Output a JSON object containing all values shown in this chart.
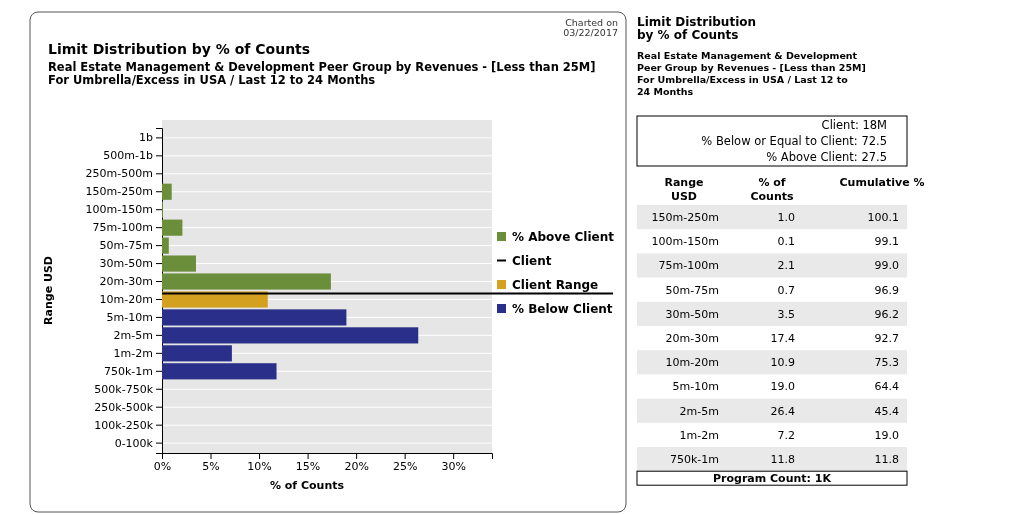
{
  "chart_data": [
    {
      "type": "bar",
      "orientation": "horizontal",
      "title": "Limit Distribution by % of Counts",
      "subtitle": "Real Estate Management & Development Peer Group by Revenues - [Less than 25M]\nFor Umbrella/Excess in USA / Last 12 to 24 Months",
      "annotations": [
        "Charted on\n03/22/2017"
      ],
      "xlabel": "% of Counts",
      "ylabel": "Range USD",
      "categories": [
        "1b",
        "500m-1b",
        "250m-500m",
        "150m-250m",
        "100m-150m",
        "75m-100m",
        "50m-75m",
        "30m-50m",
        "20m-30m",
        "10m-20m",
        "5m-10m",
        "2m-5m",
        "1m-2m",
        "750k-1m",
        "500k-750k",
        "250k-500k",
        "100k-250k",
        "0-100k"
      ],
      "series": [
        {
          "name": "% Above Client",
          "color": "#6b8e3a",
          "values": [
            null,
            null,
            null,
            1.0,
            0.1,
            2.1,
            0.7,
            3.5,
            17.4,
            null,
            null,
            null,
            null,
            null,
            null,
            null,
            null,
            null
          ]
        },
        {
          "name": "Client Range",
          "color": "#d4a020",
          "values": [
            null,
            null,
            null,
            null,
            null,
            null,
            null,
            null,
            null,
            10.9,
            null,
            null,
            null,
            null,
            null,
            null,
            null,
            null
          ]
        },
        {
          "name": "% Below Client",
          "color": "#2a2f8a",
          "values": [
            null,
            null,
            null,
            null,
            null,
            null,
            null,
            null,
            null,
            null,
            19.0,
            26.4,
            7.2,
            11.8,
            null,
            null,
            null,
            null
          ]
        }
      ],
      "ref_lines": [
        {
          "axis": "y",
          "value": "10m-20m",
          "label": "Client",
          "color": "#000000"
        }
      ],
      "xlim": [
        0,
        34
      ],
      "xticks": [
        {
          "value": 0,
          "label": "0%"
        },
        {
          "value": 5,
          "label": "5%"
        },
        {
          "value": 10,
          "label": "10%"
        },
        {
          "value": 15,
          "label": "15%"
        },
        {
          "value": 20,
          "label": "20%"
        },
        {
          "value": 25,
          "label": "25%"
        },
        {
          "value": 30,
          "label": "30%"
        }
      ],
      "grid": "y",
      "legend": "right"
    },
    {
      "type": "other",
      "title": "Limit Distribution\nby % of Counts",
      "subtitle": "Real Estate Management & Development\nPeer Group by Revenues - [Less than 25M]\nFor Umbrella/Excess in USA / Last 12 to\n24 Months",
      "annotations": [
        "Client: 18M",
        "% Below or Equal to Client: 72.5",
        "% Above Client: 27.5",
        "Program Count: 1K",
        "% of\nCounts",
        "Cumulative %"
      ],
      "xlabel": "Range\nUSD",
      "categories": [
        "150m-250m",
        "100m-150m",
        "75m-100m",
        "50m-75m",
        "30m-50m",
        "20m-30m",
        "10m-20m",
        "5m-10m",
        "2m-5m",
        "1m-2m",
        "750k-1m"
      ],
      "series": [
        {
          "values": [
            1.0,
            0.1,
            2.1,
            0.7,
            3.5,
            17.4,
            10.9,
            19.0,
            26.4,
            7.2,
            11.8
          ],
          "value_labels": [
            "1.0",
            "0.1",
            "2.1",
            "0.7",
            "3.5",
            "17.4",
            "10.9",
            "19.0",
            "26.4",
            "7.2",
            "11.8"
          ]
        },
        {
          "values": [
            100.1,
            99.1,
            99.0,
            96.9,
            96.2,
            92.7,
            75.3,
            64.4,
            45.4,
            19.0,
            11.8
          ],
          "value_labels": [
            "100.1",
            "99.1",
            "99.0",
            "96.9",
            "96.2",
            "92.7",
            "75.3",
            "64.4",
            "45.4",
            "19.0",
            "11.8"
          ]
        }
      ]
    }
  ]
}
